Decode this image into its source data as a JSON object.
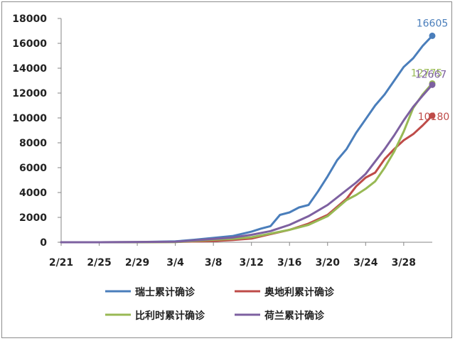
{
  "chart_data": {
    "type": "line",
    "title": "",
    "xlabel": "",
    "ylabel": "",
    "ylim": [
      0,
      18000
    ],
    "yticks": [
      0,
      2000,
      4000,
      6000,
      8000,
      10000,
      12000,
      14000,
      16000,
      18000
    ],
    "xticks": [
      "2/21",
      "2/25",
      "2/29",
      "3/4",
      "3/8",
      "3/12",
      "3/16",
      "3/20",
      "3/24",
      "3/28"
    ],
    "grid": false,
    "legend_position": "bottom",
    "series": [
      {
        "name": "瑞士累计确诊",
        "color": "#4a7ebb",
        "end_label": "16605",
        "x": [
          "2/21",
          "2/25",
          "2/29",
          "3/2",
          "3/4",
          "3/6",
          "3/8",
          "3/10",
          "3/12",
          "3/13",
          "3/14",
          "3/15",
          "3/16",
          "3/17",
          "3/18",
          "3/19",
          "3/20",
          "3/21",
          "3/22",
          "3/23",
          "3/24",
          "3/25",
          "3/26",
          "3/27",
          "3/28",
          "3/29",
          "3/30",
          "3/31"
        ],
        "values": [
          0,
          1,
          15,
          40,
          70,
          200,
          350,
          500,
          850,
          1100,
          1300,
          2200,
          2400,
          2800,
          3000,
          4100,
          5300,
          6600,
          7500,
          8800,
          9900,
          11000,
          11900,
          13000,
          14100,
          14800,
          15800,
          16605
        ]
      },
      {
        "name": "奥地利累计确诊",
        "color": "#be4b48",
        "end_label": "10180",
        "x": [
          "2/21",
          "2/25",
          "2/29",
          "3/4",
          "3/8",
          "3/10",
          "3/12",
          "3/14",
          "3/16",
          "3/18",
          "3/20",
          "3/22",
          "3/23",
          "3/24",
          "3/25",
          "3/26",
          "3/27",
          "3/28",
          "3/29",
          "3/30",
          "3/31"
        ],
        "values": [
          0,
          0,
          5,
          25,
          100,
          180,
          300,
          650,
          1000,
          1500,
          2200,
          3500,
          4500,
          5200,
          5600,
          6700,
          7500,
          8200,
          8700,
          9400,
          10180
        ]
      },
      {
        "name": "比利时累计确诊",
        "color": "#98b954",
        "end_label": "12775",
        "x": [
          "2/21",
          "2/25",
          "2/29",
          "3/4",
          "3/8",
          "3/10",
          "3/12",
          "3/14",
          "3/16",
          "3/18",
          "3/20",
          "3/22",
          "3/23",
          "3/24",
          "3/25",
          "3/26",
          "3/27",
          "3/28",
          "3/29",
          "3/30",
          "3/31"
        ],
        "values": [
          0,
          0,
          1,
          15,
          200,
          270,
          400,
          700,
          1000,
          1400,
          2100,
          3400,
          3800,
          4300,
          4900,
          6000,
          7300,
          8900,
          10800,
          11900,
          12775
        ]
      },
      {
        "name": "荷兰累计确诊",
        "color": "#7d60a0",
        "end_label": "12667",
        "x": [
          "2/21",
          "2/25",
          "2/29",
          "3/4",
          "3/8",
          "3/10",
          "3/12",
          "3/14",
          "3/16",
          "3/18",
          "3/20",
          "3/22",
          "3/23",
          "3/24",
          "3/25",
          "3/26",
          "3/27",
          "3/28",
          "3/29",
          "3/30",
          "3/31"
        ],
        "values": [
          0,
          0,
          10,
          40,
          260,
          380,
          600,
          900,
          1400,
          2100,
          3000,
          4200,
          4800,
          5500,
          6500,
          7500,
          8600,
          9800,
          10900,
          11800,
          12667
        ]
      }
    ]
  }
}
